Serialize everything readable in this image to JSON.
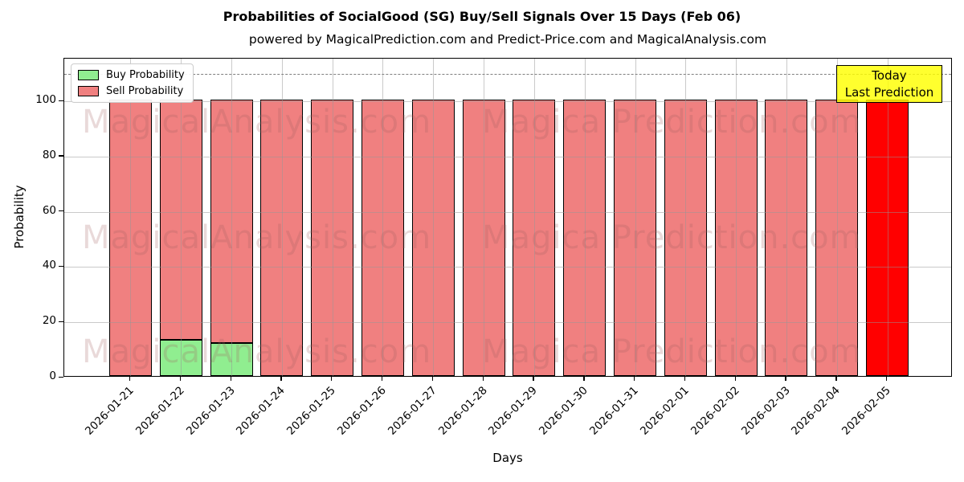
{
  "title": "Probabilities of SocialGood (SG) Buy/Sell Signals Over 15 Days (Feb 06)",
  "subtitle": "powered by MagicalPrediction.com and Predict-Price.com and MagicalAnalysis.com",
  "annotation": {
    "line1": "Today",
    "line2": "Last Prediction"
  },
  "legend": [
    {
      "label": "Buy Probability",
      "color": "#90ee90"
    },
    {
      "label": "Sell Probability",
      "color": "#f08080"
    }
  ],
  "watermarks": {
    "left": "MagicalAnalysis.com",
    "right": "Magica Prediction.com"
  },
  "chart_data": {
    "type": "bar",
    "stacked": true,
    "title": "Probabilities of SocialGood (SG) Buy/Sell Signals Over 15 Days (Feb 06)",
    "xlabel": "Days",
    "ylabel": "Probability",
    "categories": [
      "2026-01-21",
      "2026-01-22",
      "2026-01-23",
      "2026-01-24",
      "2026-01-25",
      "2026-01-26",
      "2026-01-27",
      "2026-01-28",
      "2026-01-29",
      "2026-01-30",
      "2026-01-31",
      "2026-02-01",
      "2026-02-02",
      "2026-02-03",
      "2026-02-04",
      "2026-02-05"
    ],
    "series": [
      {
        "name": "Buy Probability",
        "color": "#90ee90",
        "values": [
          0,
          13,
          12,
          0,
          0,
          0,
          0,
          0,
          0,
          0,
          0,
          0,
          0,
          0,
          0,
          0
        ]
      },
      {
        "name": "Sell Probability",
        "color": "#f08080",
        "values": [
          100,
          87,
          88,
          100,
          100,
          100,
          100,
          100,
          100,
          100,
          100,
          100,
          100,
          100,
          100,
          100
        ]
      }
    ],
    "today_index": 15,
    "today_color": "#ff0000",
    "bar_edge_color": "#000000",
    "yticks": [
      0,
      20,
      40,
      60,
      80,
      100
    ],
    "ylim": [
      0,
      115.4
    ],
    "dashed_line_y": 110,
    "grid": true,
    "legend_position": "upper left"
  }
}
